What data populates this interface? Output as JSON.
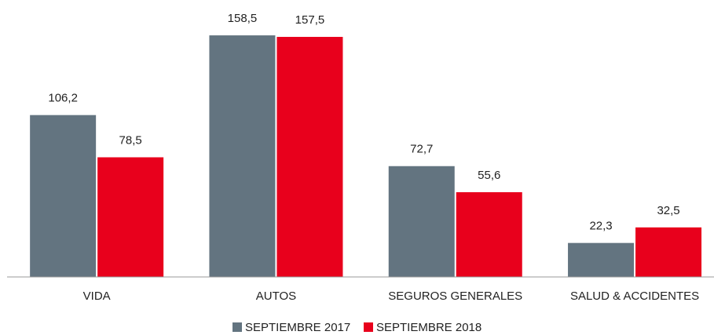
{
  "chart_data": {
    "type": "bar",
    "categories": [
      "VIDA",
      "AUTOS",
      "SEGUROS GENERALES",
      "SALUD & ACCIDENTES"
    ],
    "series": [
      {
        "name": "SEPTIEMBRE 2017",
        "color": "#637480",
        "values": [
          106.2,
          158.5,
          72.7,
          22.3
        ],
        "value_labels": [
          "106,2",
          "158,5",
          "72,7",
          "22,3"
        ]
      },
      {
        "name": "SEPTIEMBRE 2018",
        "color": "#e8001c",
        "values": [
          78.5,
          157.5,
          55.6,
          32.5
        ],
        "value_labels": [
          "78,5",
          "157,5",
          "55,6",
          "32,5"
        ]
      }
    ],
    "ylim": [
      0,
      180
    ]
  }
}
